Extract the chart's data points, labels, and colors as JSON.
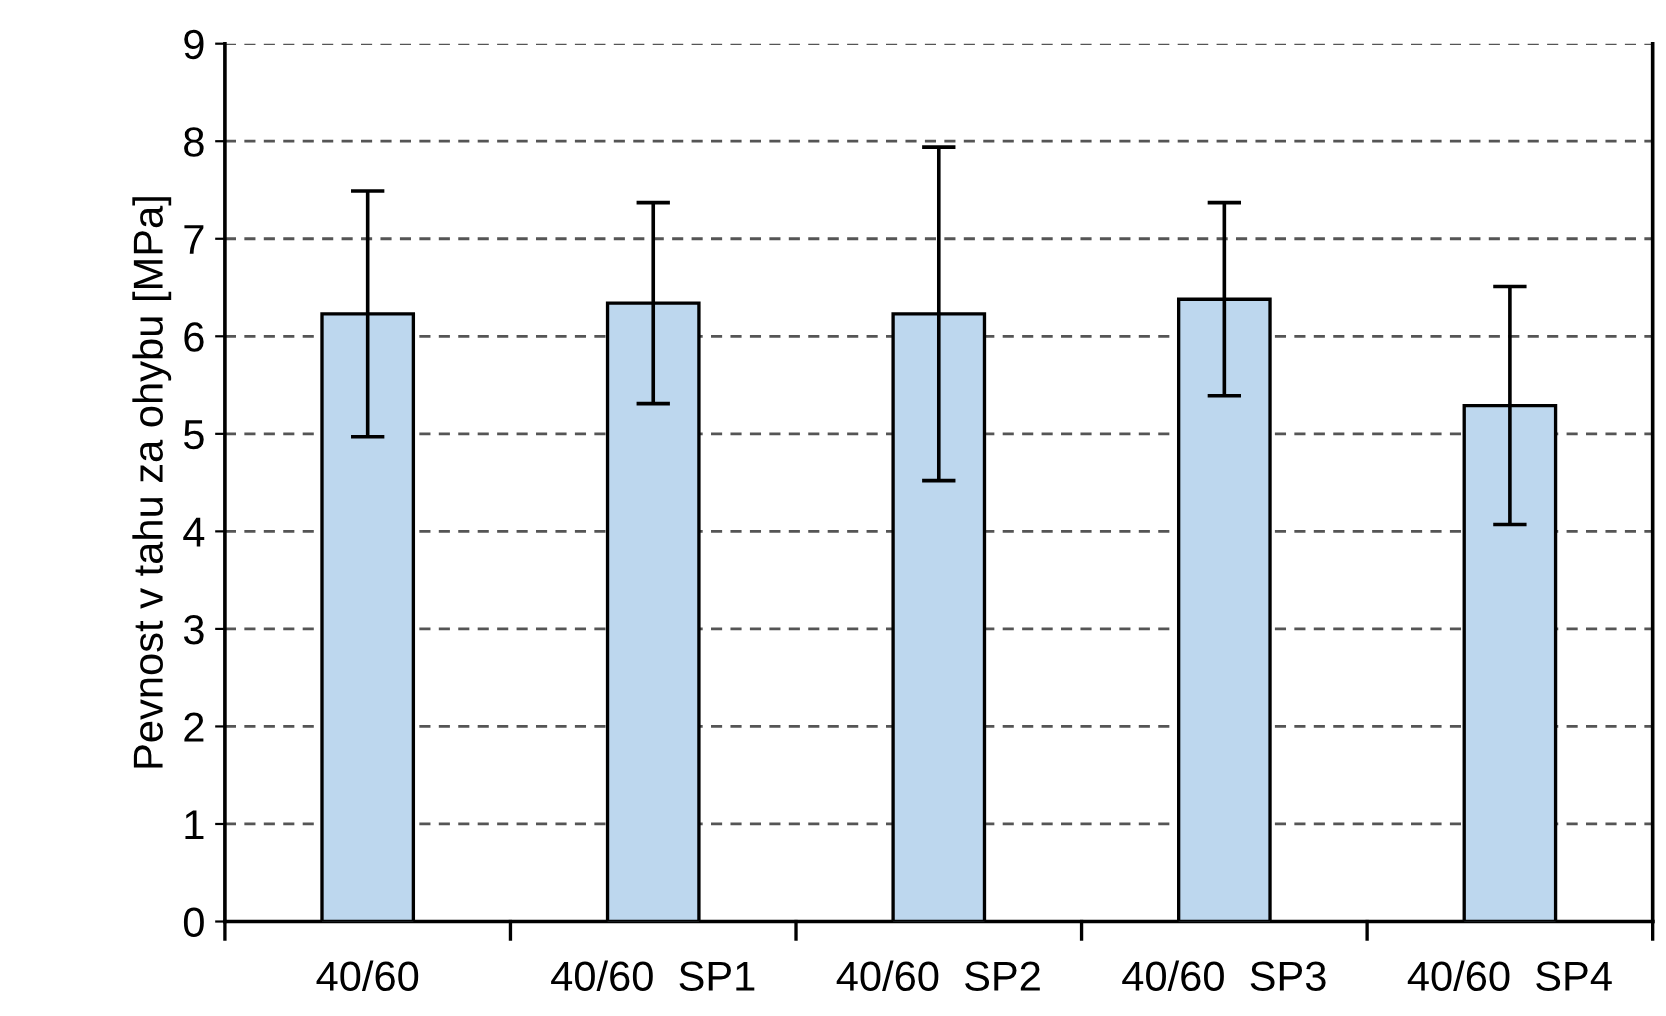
{
  "chart_data": {
    "type": "bar",
    "ylabel": "Pevnost v tahu za ohybu [MPa]",
    "categories": [
      "40/60",
      "40/60  SP1",
      "40/60  SP2",
      "40/60  SP3",
      "40/60  SP4"
    ],
    "values": [
      6.23,
      6.34,
      6.23,
      6.38,
      5.29
    ],
    "errors": [
      1.26,
      1.03,
      1.71,
      0.99,
      1.22
    ],
    "color": "#bdd7ee",
    "ylim": [
      0,
      9
    ],
    "yticks": [
      0,
      1,
      2,
      3,
      4,
      5,
      6,
      7,
      8,
      9
    ],
    "grid": "y",
    "line_style": "dashed"
  }
}
